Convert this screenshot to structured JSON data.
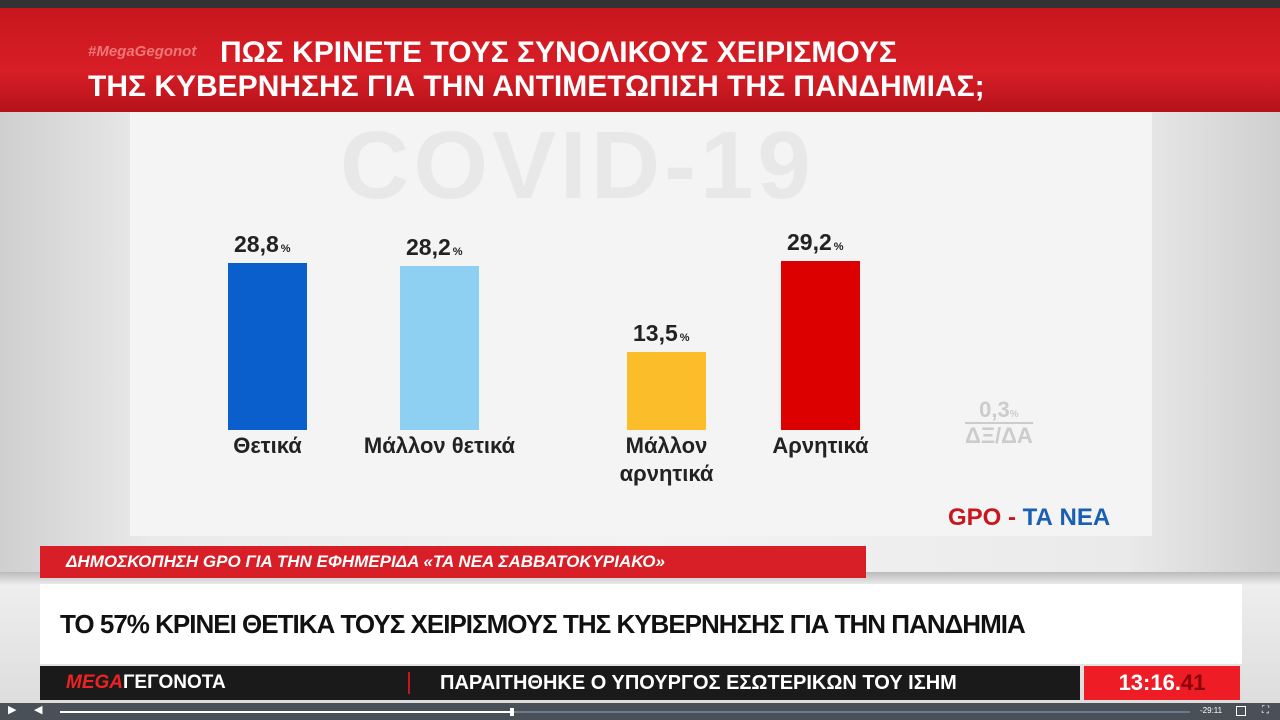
{
  "header": {
    "hashtag": "#MegaGegonot",
    "title_line1": "ΠΩΣ ΚΡΙΝΕΤΕ ΤΟΥΣ ΣΥΝΟΛΙΚΟΥΣ ΧΕΙΡΙΣΜΟΥΣ",
    "title_line2": "ΤΗΣ ΚΥΒΕΡΝΗΣΗΣ ΓΙΑ ΤΗΝ ΑΝΤΙΜΕΤΩΠΙΣΗ ΤΗΣ ΠΑΝΔΗΜΙΑΣ;"
  },
  "watermark": "COVID-19",
  "chart_data": {
    "type": "bar",
    "categories": [
      "Θετικά",
      "Μάλλον θετικά",
      "Μάλλον αρνητικά",
      "Αρνητικά"
    ],
    "values": [
      28.8,
      28.2,
      13.5,
      29.2
    ],
    "value_labels": [
      "28,8",
      "28,2",
      "13,5",
      "29,2"
    ],
    "unit": "%",
    "colors": [
      "#0a5fcc",
      "#8ed0f2",
      "#fbbd2a",
      "#dd0000"
    ],
    "extra": {
      "value": "0,3",
      "unit": "%",
      "label": "ΔΞ/ΔΑ"
    },
    "grid": false
  },
  "source": {
    "part1": "GPO",
    "sep": " - ",
    "part2": "ΤΑ ΝΕΑ"
  },
  "subtitle": "ΔΗΜΟΣΚΟΠΗΣΗ GPO ΓΙΑ ΤΗΝ ΕΦΗΜΕΡΙΔΑ «ΤΑ ΝΕΑ ΣΑΒΒΑΤΟΚΥΡΙΑΚΟ»",
  "headline": "ΤΟ 57% ΚΡΙΝΕΙ ΘΕΤΙΚΑ ΤΟΥΣ ΧΕΙΡΙΣΜΟΥΣ ΤΗΣ ΚΥΒΕΡΝΗΣΗΣ ΓΙΑ ΤΗΝ ΠΑΝΔΗΜΙΑ",
  "ticker": {
    "logo_a": "MEGA",
    "logo_b": "ΓΕΓΟΝΟΤΑ",
    "text": "ΠΑΡΑΙΤΗΘΗΚΕ Ο ΥΠΟΥΡΓΟΣ ΕΣΩΤΕΡΙΚΩΝ ΤΟΥ ΙΣΗΜ",
    "clock_main": "13:16.",
    "clock_sec": "41"
  },
  "player": {
    "remaining": "-29:11",
    "progress": 0.4,
    "icons": [
      "play-icon",
      "volume-icon",
      "pip-icon",
      "fullscreen-icon"
    ]
  }
}
